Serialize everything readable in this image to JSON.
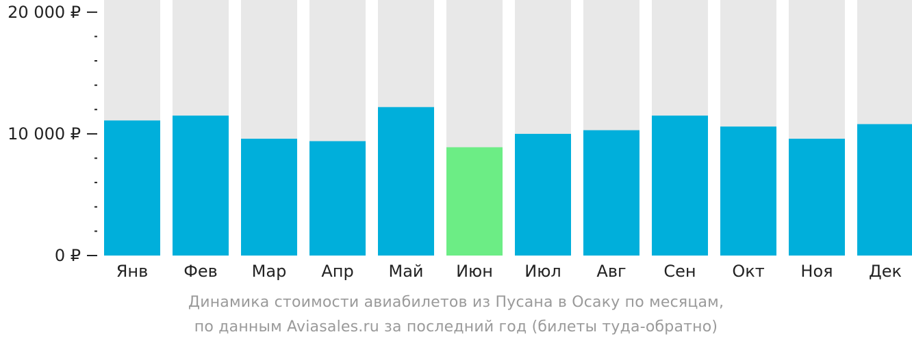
{
  "chart_data": {
    "type": "bar",
    "categories": [
      "Янв",
      "Фев",
      "Мар",
      "Апр",
      "Май",
      "Июн",
      "Июл",
      "Авг",
      "Сен",
      "Окт",
      "Ноя",
      "Дек"
    ],
    "values": [
      11100,
      11500,
      9600,
      9400,
      12200,
      8900,
      10000,
      10300,
      11500,
      10600,
      9600,
      10800
    ],
    "highlight_index": 5,
    "ylim": [
      0,
      21000
    ],
    "yticks": [
      0,
      10000,
      20000
    ],
    "ytick_labels": [
      "0 ₽",
      "10 000 ₽",
      "20 000 ₽"
    ],
    "minor_tick_step": 2000,
    "grid": false,
    "colors": {
      "bar": "#00afdb",
      "highlight": "#6ced85",
      "background_bar": "#e8e8e8",
      "axis": "#222222"
    }
  },
  "caption": {
    "line1": "Динамика стоимости авиабилетов из Пусана в Осаку по месяцам,",
    "line2": "по данным Aviasales.ru за последний год (билеты туда-обратно)"
  }
}
